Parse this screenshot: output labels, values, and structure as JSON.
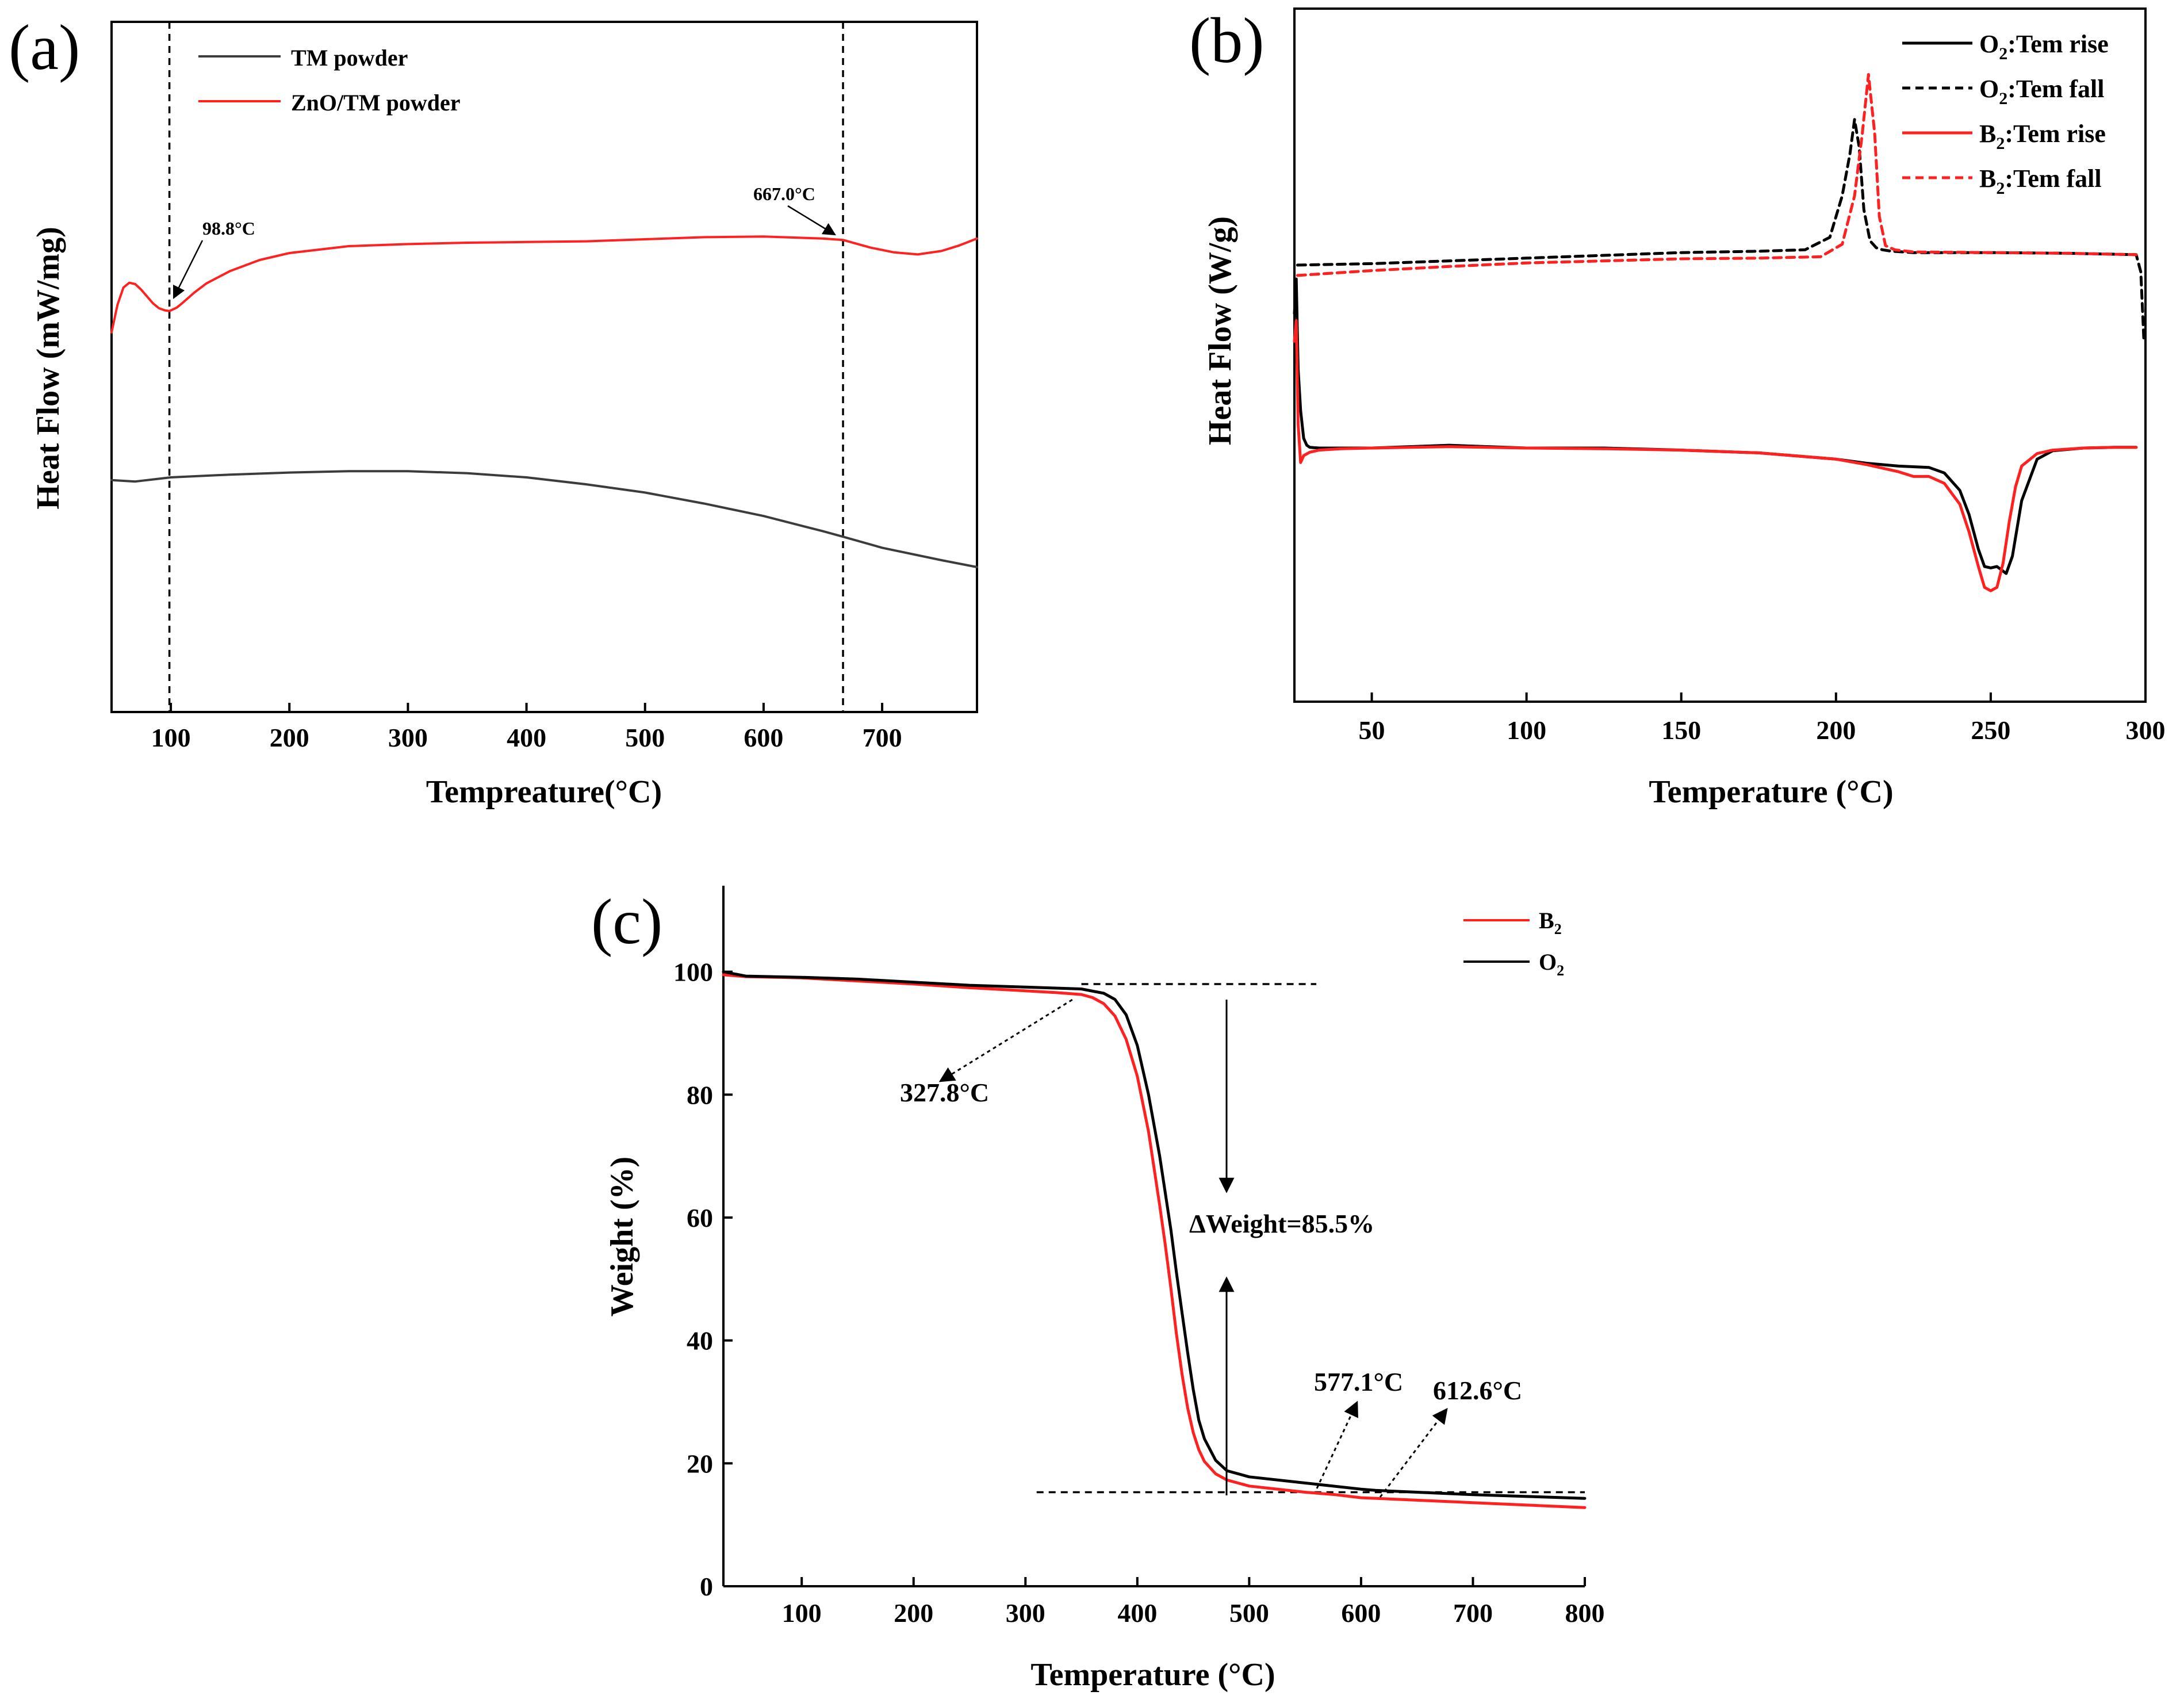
{
  "colors": {
    "black": "#000000",
    "red": "#ff2020",
    "gray": "#3c3c3c"
  },
  "chart_data": [
    {
      "panel": "(a)",
      "type": "line",
      "xlabel": "Tempreature(°C)",
      "ylabel": "Heat Flow (mW/mg)",
      "xlim": [
        50,
        780
      ],
      "ylim": [
        0,
        100
      ],
      "x_ticks": [
        "100",
        "200",
        "300",
        "400",
        "500",
        "600",
        "700"
      ],
      "series": [
        {
          "name": "TM powder",
          "color": "#3c3c3c",
          "x": [
            50,
            70,
            100,
            150,
            200,
            250,
            300,
            350,
            400,
            450,
            500,
            550,
            600,
            650,
            667,
            700,
            750,
            780
          ],
          "y": [
            33.6,
            33.4,
            34.0,
            34.4,
            34.7,
            34.9,
            34.9,
            34.6,
            34.0,
            33.0,
            31.8,
            30.2,
            28.4,
            26.2,
            25.4,
            23.8,
            22.0,
            21.0
          ]
        },
        {
          "name": "ZnO/TM powder",
          "color": "#ff2020",
          "x": [
            50,
            55,
            60,
            65,
            70,
            75,
            80,
            85,
            90,
            95,
            98.8,
            105,
            110,
            120,
            130,
            140,
            150,
            175,
            200,
            250,
            300,
            350,
            400,
            450,
            500,
            550,
            600,
            650,
            667,
            690,
            710,
            730,
            750,
            765,
            780
          ],
          "y": [
            55.0,
            59.0,
            61.5,
            62.2,
            62.0,
            61.2,
            60.2,
            59.2,
            58.5,
            58.2,
            58.1,
            58.6,
            59.3,
            60.8,
            62.1,
            63.0,
            63.9,
            65.5,
            66.5,
            67.5,
            67.8,
            68.0,
            68.1,
            68.2,
            68.5,
            68.8,
            68.9,
            68.6,
            68.4,
            67.3,
            66.6,
            66.3,
            66.8,
            67.6,
            68.6
          ]
        }
      ],
      "vlines": [
        98.8,
        667.0
      ],
      "annotations": [
        "98.8°C",
        "667.0°C"
      ]
    },
    {
      "panel": "(b)",
      "type": "line",
      "xlabel": "Temperature (°C)",
      "ylabel": "Heat Flow (W/g)",
      "xlim": [
        25,
        300
      ],
      "ylim": [
        0,
        100
      ],
      "x_ticks": [
        "50",
        "100",
        "150",
        "200",
        "250",
        "300"
      ],
      "series": [
        {
          "name": "O2:Tem rise",
          "label_main": "O",
          "label_sub": "2",
          "label_rest": ":Tem rise",
          "color": "#000000",
          "dash": false,
          "x": [
            25,
            25.6,
            26.2,
            27,
            28,
            29,
            30,
            33,
            40,
            50,
            75,
            100,
            125,
            150,
            175,
            200,
            210,
            220,
            230,
            235,
            240,
            243,
            246,
            248,
            250,
            252,
            253.5,
            255,
            257,
            260,
            265,
            270,
            280,
            290,
            297
          ],
          "y": [
            56,
            61,
            48,
            42,
            38,
            37,
            36.7,
            36.6,
            36.6,
            36.6,
            37.0,
            36.6,
            36.6,
            36.3,
            35.9,
            35.0,
            34.4,
            34.0,
            33.8,
            33.0,
            30.5,
            27.0,
            22.0,
            19.5,
            19.3,
            19.5,
            19.0,
            18.5,
            21.0,
            29.0,
            35.0,
            36.2,
            36.6,
            36.7,
            36.7
          ]
        },
        {
          "name": "O2:Tem fall",
          "label_main": "O",
          "label_sub": "2",
          "label_rest": ":Tem fall",
          "color": "#000000",
          "dash": true,
          "x": [
            26,
            50,
            75,
            100,
            125,
            150,
            175,
            190,
            198,
            202,
            204.5,
            206,
            207.5,
            209,
            211,
            213,
            215,
            218,
            225,
            250,
            275,
            297,
            298.5,
            299.5
          ],
          "y": [
            63.0,
            63.2,
            63.6,
            64.0,
            64.4,
            64.8,
            65.0,
            65.2,
            67.0,
            73.0,
            79.0,
            84.0,
            80.0,
            71.0,
            66.5,
            65.5,
            65.2,
            65.0,
            64.8,
            64.8,
            64.7,
            64.5,
            62.0,
            52.0
          ]
        },
        {
          "name": "B2:Tem rise",
          "label_main": "B",
          "label_sub": "2",
          "label_rest": ":Tem rise",
          "color": "#ff2020",
          "dash": false,
          "x": [
            25,
            25.6,
            26.2,
            27,
            28,
            30,
            33,
            40,
            50,
            75,
            100,
            125,
            150,
            175,
            200,
            210,
            220,
            225,
            230,
            235,
            240,
            243,
            246,
            248,
            250,
            252,
            254,
            256,
            258,
            260,
            265,
            270,
            280,
            290,
            297
          ],
          "y": [
            52,
            55,
            40,
            34.5,
            35.5,
            36.0,
            36.3,
            36.5,
            36.6,
            36.8,
            36.6,
            36.5,
            36.3,
            35.9,
            35.0,
            34.2,
            33.2,
            32.5,
            32.5,
            31.5,
            28.5,
            24.5,
            19.5,
            16.5,
            16.0,
            16.5,
            20.0,
            26.0,
            31.0,
            34.0,
            35.8,
            36.3,
            36.6,
            36.7,
            36.7
          ]
        },
        {
          "name": "B2:Tem fall",
          "label_main": "B",
          "label_sub": "2",
          "label_rest": ":Tem fall",
          "color": "#ff2020",
          "dash": true,
          "x": [
            26,
            50,
            75,
            100,
            125,
            150,
            175,
            195,
            202,
            206,
            208.5,
            210.5,
            212.5,
            214,
            216,
            219,
            225,
            250,
            275,
            297
          ],
          "y": [
            61.5,
            62.2,
            62.8,
            63.3,
            63.6,
            63.9,
            64.0,
            64.2,
            66.0,
            73.0,
            82.0,
            90.5,
            82.0,
            70.0,
            65.8,
            65.2,
            64.9,
            64.8,
            64.7,
            64.5
          ]
        }
      ]
    },
    {
      "panel": "(c)",
      "type": "line",
      "xlabel": "Temperature (°C)",
      "ylabel": "Weight (%)",
      "xlim": [
        30,
        800
      ],
      "ylim": [
        0,
        114
      ],
      "x_ticks": [
        "100",
        "200",
        "300",
        "400",
        "500",
        "600",
        "700",
        "800"
      ],
      "y_ticks": [
        "0",
        "20",
        "40",
        "60",
        "80",
        "100"
      ],
      "series": [
        {
          "name": "B2",
          "label_main": "B",
          "label_sub": "2",
          "color": "#ff2020",
          "x": [
            30,
            50,
            100,
            150,
            200,
            250,
            300,
            327.8,
            350,
            360,
            370,
            380,
            390,
            400,
            410,
            420,
            425,
            430,
            435,
            440,
            445,
            450,
            455,
            460,
            470,
            480,
            500,
            550,
            577.1,
            600,
            650,
            700,
            750,
            800
          ],
          "y": [
            99.5,
            99.2,
            99.0,
            98.5,
            98.0,
            97.4,
            96.9,
            96.6,
            96.3,
            95.8,
            94.8,
            92.8,
            89.0,
            83.0,
            74.0,
            62.0,
            55.5,
            48.5,
            41.0,
            34.5,
            29.0,
            25.0,
            22.2,
            20.3,
            18.3,
            17.3,
            16.3,
            15.3,
            14.9,
            14.4,
            14.0,
            13.6,
            13.2,
            12.8
          ]
        },
        {
          "name": "O2",
          "label_main": "O",
          "label_sub": "2",
          "color": "#000000",
          "x": [
            30,
            50,
            100,
            150,
            200,
            250,
            300,
            350,
            370,
            380,
            390,
            400,
            410,
            420,
            430,
            435,
            440,
            445,
            450,
            455,
            460,
            470,
            480,
            500,
            550,
            600,
            612.6,
            650,
            700,
            750,
            800
          ],
          "y": [
            100.0,
            99.3,
            99.1,
            98.8,
            98.3,
            97.8,
            97.5,
            97.2,
            96.5,
            95.5,
            93.0,
            88.0,
            80.0,
            70.0,
            58.0,
            51.0,
            44.5,
            38.0,
            32.0,
            27.0,
            24.0,
            20.5,
            18.8,
            17.8,
            16.8,
            15.8,
            15.6,
            15.3,
            14.9,
            14.6,
            14.3
          ]
        }
      ],
      "hlines": [
        98.0,
        15.3
      ],
      "annotations": [
        "327.8°C",
        "ΔWeight=85.5%",
        "577.1°C",
        "612.6°C"
      ]
    }
  ]
}
